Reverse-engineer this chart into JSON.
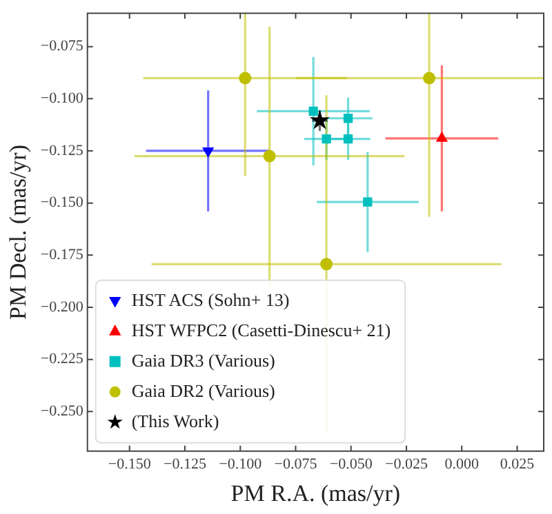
{
  "chart_data": {
    "type": "scatter",
    "xlabel": "PM R.A. (mas/yr)",
    "ylabel": "PM Decl. (mas/yr)",
    "xlim": [
      -0.169,
      0.037
    ],
    "ylim": [
      -0.269,
      -0.059
    ],
    "xticks": [
      {
        "value": -0.15,
        "label": "−0.150"
      },
      {
        "value": -0.125,
        "label": "−0.125"
      },
      {
        "value": -0.1,
        "label": "−0.100"
      },
      {
        "value": -0.075,
        "label": "−0.075"
      },
      {
        "value": -0.05,
        "label": "−0.050"
      },
      {
        "value": -0.025,
        "label": "−0.025"
      },
      {
        "value": 0,
        "label": "0.000"
      },
      {
        "value": 0.025,
        "label": "0.025"
      }
    ],
    "yticks": [
      {
        "value": -0.075,
        "label": "−0.075"
      },
      {
        "value": -0.1,
        "label": "−0.100"
      },
      {
        "value": -0.125,
        "label": "−0.125"
      },
      {
        "value": -0.15,
        "label": "−0.150"
      },
      {
        "value": -0.175,
        "label": "−0.175"
      },
      {
        "value": -0.2,
        "label": "−0.200"
      },
      {
        "value": -0.225,
        "label": "−0.225"
      },
      {
        "value": -0.25,
        "label": "−0.250"
      }
    ],
    "grid": false,
    "legend": "bottom left",
    "series": [
      {
        "name": "HST ACS (Sohn+ 13)",
        "color": "#0000ff",
        "marker": "triangle-down",
        "x": [
          -0.1145
        ],
        "values": [
          -0.125
        ],
        "xerrors": [
          0.028
        ],
        "errors": [
          0.029
        ]
      },
      {
        "name": "HST WFPC2 (Casetti-Dinescu+ 21)",
        "color": "#ff0000",
        "marker": "triangle",
        "x": [
          -0.009
        ],
        "values": [
          -0.119
        ],
        "xerrors": [
          0.0255
        ],
        "errors": [
          0.035
        ]
      },
      {
        "name": "Gaia DR3 (Various)",
        "color": "#00bfbf",
        "marker": "square",
        "x": [
          -0.067,
          -0.0513,
          -0.0513,
          -0.0611,
          -0.0425
        ],
        "values": [
          -0.106,
          -0.1094,
          -0.1193,
          -0.1193,
          -0.1495
        ],
        "xerrors": [
          0.0255,
          0.011,
          0.01,
          0.01,
          0.023
        ],
        "errors": [
          0.026,
          0.01,
          0.01,
          0.01,
          0.024
        ]
      },
      {
        "name": "Gaia DR2 (Various)",
        "color": "#bfbf00",
        "marker": "circle",
        "x": [
          -0.0978,
          -0.0147,
          -0.0868,
          -0.0611
        ],
        "values": [
          -0.0901,
          -0.0901,
          -0.1275,
          -0.1793
        ],
        "xerrors": [
          0.046,
          0.06,
          0.061,
          0.079
        ],
        "errors": [
          0.047,
          0.0665,
          0.062,
          0.081
        ]
      },
      {
        "name": "(This Work)",
        "color": "#000000",
        "marker": "star",
        "x": [
          -0.0641
        ],
        "values": [
          -0.1105
        ],
        "xerrors": [
          0.0035
        ],
        "errors": [
          0.005
        ]
      }
    ]
  }
}
